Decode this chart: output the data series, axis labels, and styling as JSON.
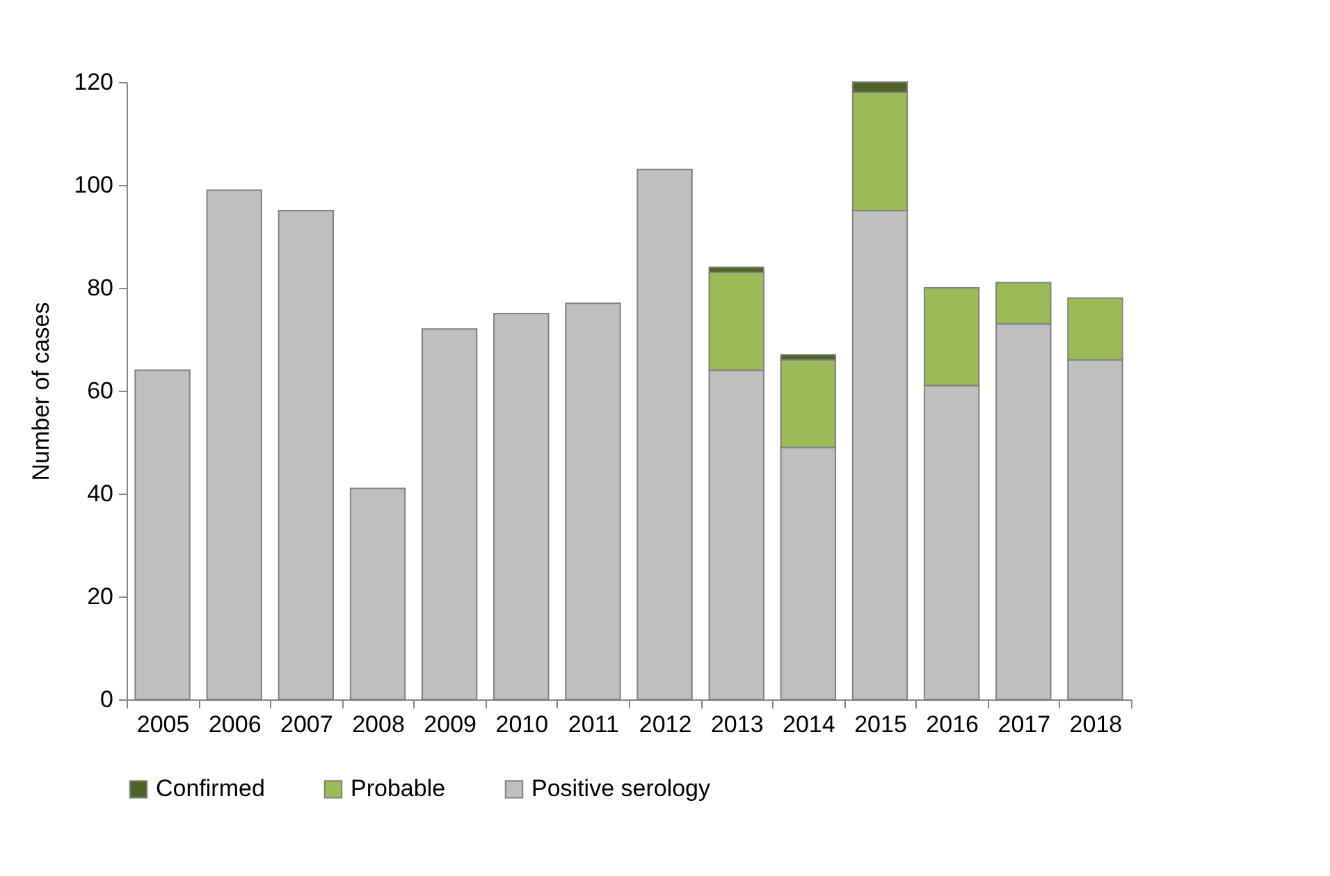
{
  "chart_data": {
    "type": "bar",
    "stacked": true,
    "ylabel": "Number of cases",
    "categories": [
      "2005",
      "2006",
      "2007",
      "2008",
      "2009",
      "2010",
      "2011",
      "2012",
      "2013",
      "2014",
      "2015",
      "2016",
      "2017",
      "2018"
    ],
    "series": [
      {
        "name": "Positive serology",
        "color": "#bfbfbf",
        "values": [
          64,
          99,
          95,
          41,
          72,
          75,
          77,
          103,
          64,
          49,
          95,
          61,
          73,
          66
        ]
      },
      {
        "name": "Probable",
        "color": "#9bbb59",
        "values": [
          null,
          null,
          null,
          null,
          null,
          null,
          null,
          null,
          19,
          17,
          23,
          19,
          8,
          12
        ]
      },
      {
        "name": "Confirmed",
        "color": "#4f6228",
        "values": [
          null,
          null,
          null,
          null,
          null,
          null,
          null,
          null,
          1,
          1,
          2,
          null,
          null,
          null
        ]
      }
    ],
    "ylim": [
      0,
      120
    ],
    "yticks": [
      0,
      20,
      40,
      60,
      80,
      100,
      120
    ],
    "grid": false,
    "legend": "bottom"
  }
}
